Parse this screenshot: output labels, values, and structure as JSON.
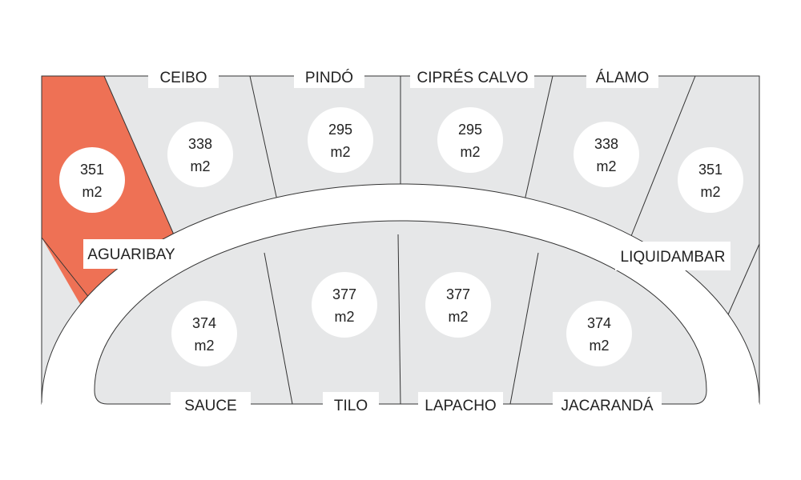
{
  "colors": {
    "selected": "#EE7155",
    "lot": "#E6E7E8",
    "line": "#333333"
  },
  "lots": [
    {
      "area": "351",
      "unit": "m2",
      "selected": true
    },
    {
      "area": "338",
      "unit": "m2"
    },
    {
      "area": "295",
      "unit": "m2"
    },
    {
      "area": "295",
      "unit": "m2"
    },
    {
      "area": "338",
      "unit": "m2"
    },
    {
      "area": "351",
      "unit": "m2"
    },
    {
      "area": "374",
      "unit": "m2"
    },
    {
      "area": "377",
      "unit": "m2"
    },
    {
      "area": "377",
      "unit": "m2"
    },
    {
      "area": "374",
      "unit": "m2"
    }
  ],
  "labels": {
    "top": [
      "CEIBO",
      "PINDÓ",
      "CIPRÉS CALVO",
      "ÁLAMO"
    ],
    "middle": [
      "AGUARIBAY",
      "LIQUIDAMBAR"
    ],
    "bottom": [
      "SAUCE",
      "TILO",
      "LAPACHO",
      "JACARANDÁ"
    ]
  }
}
